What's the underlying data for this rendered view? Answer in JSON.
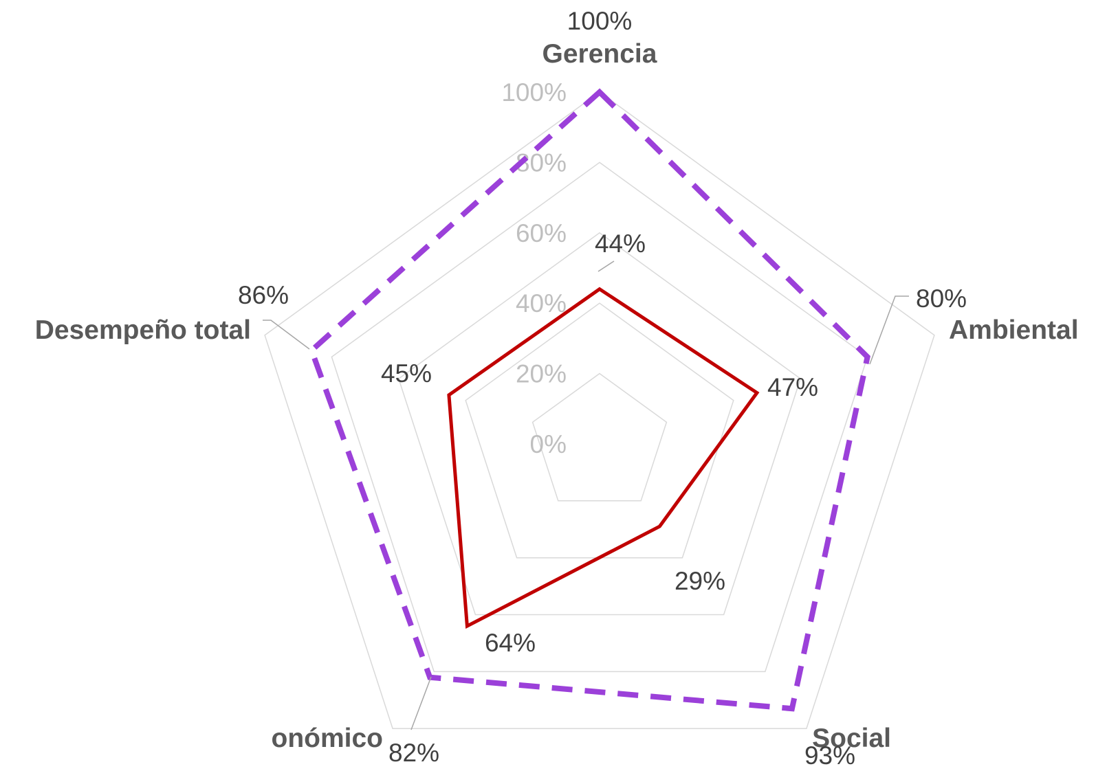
{
  "chart_data": {
    "type": "radar",
    "categories": [
      "Gerencia",
      "Ambiental",
      "Social",
      "onómico",
      "Desempeño total"
    ],
    "series": [
      {
        "values": [
          44,
          47,
          29,
          64,
          45
        ],
        "value_labels": [
          "44%",
          "47%",
          "29%",
          "64%",
          "45%"
        ],
        "color": "#c00000",
        "style": "solid"
      },
      {
        "values": [
          100,
          80,
          93,
          82,
          86
        ],
        "value_labels": [
          "100%",
          "80%",
          "93%",
          "82%",
          "86%"
        ],
        "color": "#9b40d9",
        "style": "dashed"
      }
    ],
    "r_ticks": [
      0,
      20,
      40,
      60,
      80,
      100
    ],
    "r_tick_labels": [
      "0%",
      "20%",
      "40%",
      "60%",
      "80%",
      "100%"
    ],
    "rlim": [
      0,
      100
    ],
    "grid": true,
    "legend": "none"
  }
}
